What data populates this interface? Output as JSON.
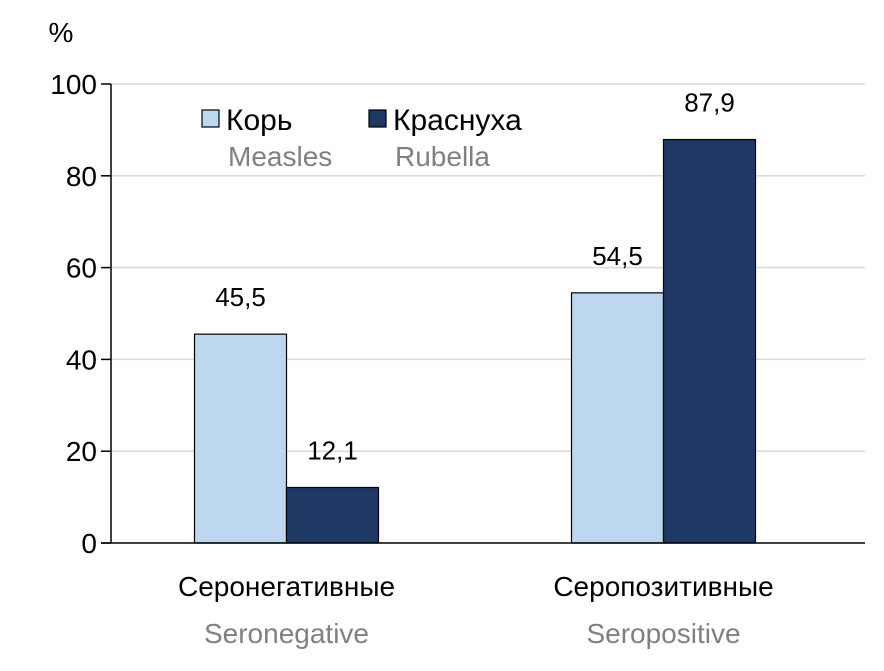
{
  "chart_data": {
    "type": "bar",
    "ylabel": "%",
    "ylim": [
      0,
      100
    ],
    "yticks": [
      0,
      20,
      40,
      60,
      80,
      100
    ],
    "grid": true,
    "legend_placement": "top-left",
    "categories": [
      {
        "label": "Серонегативные",
        "sublabel": "Seronegative"
      },
      {
        "label": "Серопозитивные",
        "sublabel": "Seropositive"
      }
    ],
    "series": [
      {
        "name": "Корь",
        "subname": "Measles",
        "color": "#BDD7EE",
        "values": [
          45.5,
          54.5
        ],
        "labels": [
          "45,5",
          "54,5"
        ]
      },
      {
        "name": "Краснуха",
        "subname": "Rubella",
        "color": "#203864",
        "values": [
          12.1,
          87.9
        ],
        "labels": [
          "12,1",
          "87,9"
        ]
      }
    ]
  }
}
